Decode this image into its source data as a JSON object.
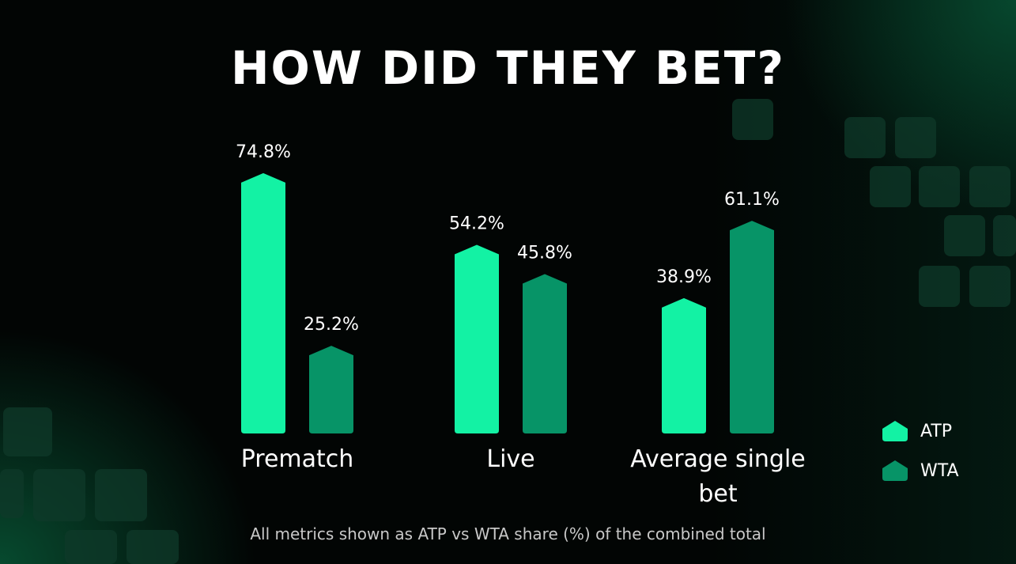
{
  "chart_data": {
    "type": "bar",
    "title": "HOW DID THEY BET?",
    "categories": [
      "Prematch",
      "Live",
      "Average single bet"
    ],
    "series": [
      {
        "name": "ATP",
        "values": [
          74.8,
          54.2,
          38.9
        ],
        "color": "#13f2a4"
      },
      {
        "name": "WTA",
        "values": [
          25.2,
          45.8,
          61.1
        ],
        "color": "#079467"
      }
    ],
    "value_labels": [
      [
        "74.8%",
        "54.2%",
        "38.9%"
      ],
      [
        "25.2%",
        "45.8%",
        "61.1%"
      ]
    ],
    "legend_position": "right",
    "ylim": [
      0,
      100
    ],
    "grid": false
  },
  "footnote": "All metrics shown as ATP vs WTA share (%) of the combined total"
}
